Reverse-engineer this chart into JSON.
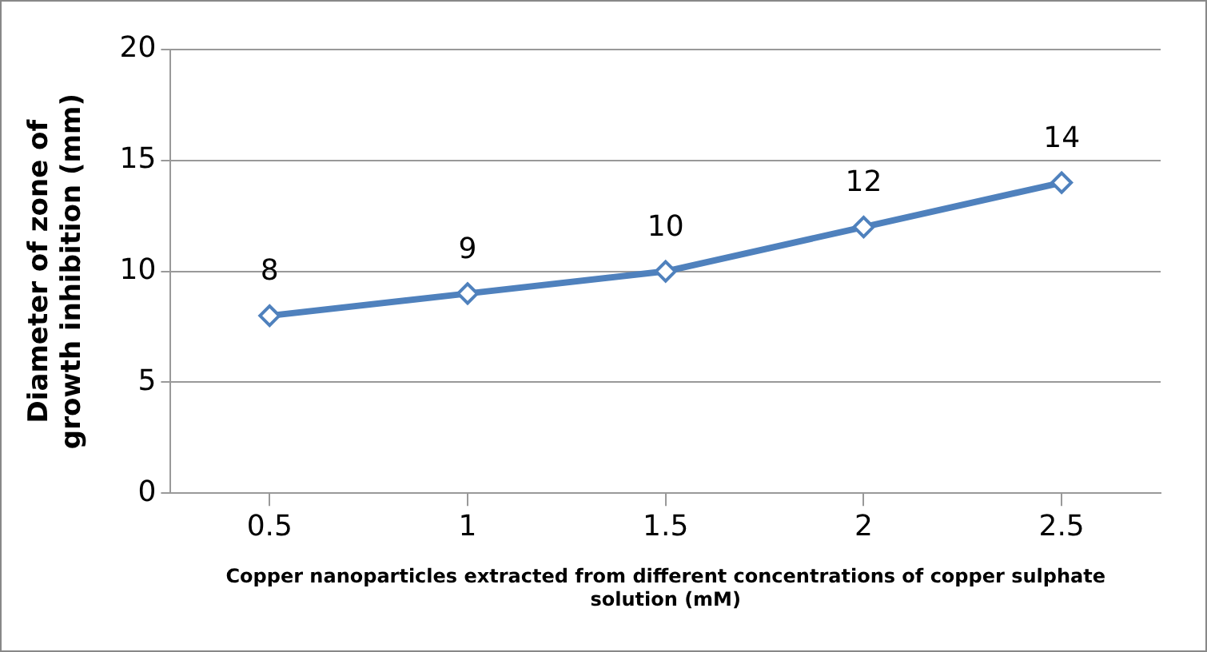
{
  "chart_data": {
    "type": "line",
    "xlabel": "Copper nanoparticles extracted from different concentrations of copper sulphate solution (mM)",
    "ylabel": "Diameter of zone of growth inhibition (mm)",
    "categories": [
      "0.5",
      "1",
      "1.5",
      "2",
      "2.5"
    ],
    "series": [
      {
        "color": "#4f81bd",
        "values": [
          8,
          9,
          10,
          12,
          14
        ]
      }
    ],
    "ylim": [
      0,
      20
    ],
    "yticks": [
      0,
      5,
      10,
      15,
      20
    ],
    "grid": "y",
    "legend": false,
    "marker": "diamond",
    "line_style": "solid",
    "data_labels": true
  }
}
